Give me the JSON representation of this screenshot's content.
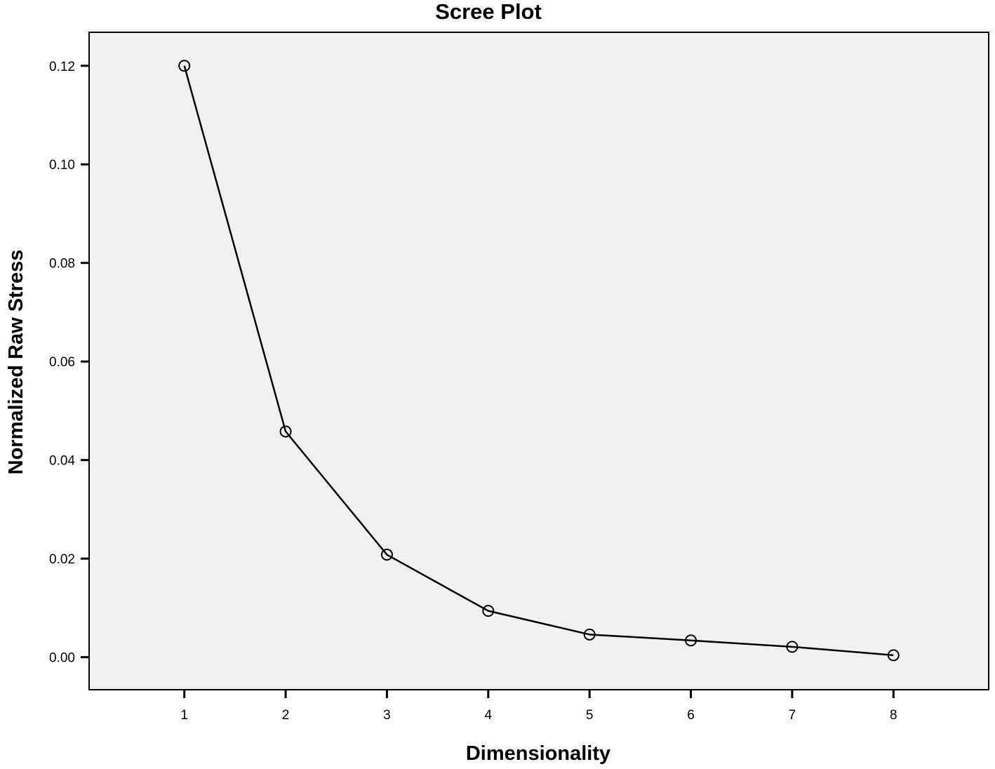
{
  "chart_data": {
    "type": "line",
    "title": "Scree Plot",
    "xlabel": "Dimensionality",
    "ylabel": "Normalized Raw Stress",
    "x": [
      1,
      2,
      3,
      4,
      5,
      6,
      7,
      8
    ],
    "x_tick_labels": [
      "1",
      "2",
      "3",
      "4",
      "5",
      "6",
      "7",
      "8"
    ],
    "y_tick_values": [
      0.0,
      0.02,
      0.04,
      0.06,
      0.08,
      0.1,
      0.12
    ],
    "y_tick_labels": [
      "0.00",
      "0.02",
      "0.04",
      "0.06",
      "0.08",
      "0.10",
      "0.12"
    ],
    "series": [
      {
        "values": [
          0.12,
          0.0458,
          0.0208,
          0.0094,
          0.0046,
          0.0034,
          0.0021,
          0.0004
        ]
      }
    ],
    "xlim": [
      0.06,
      8.94
    ],
    "ylim": [
      -0.0066,
      0.1268
    ],
    "grid": false,
    "marker": "open-circle",
    "colors": {
      "plot_background": "#f0f0f0",
      "line": "#000000",
      "axis": "#000000"
    }
  }
}
